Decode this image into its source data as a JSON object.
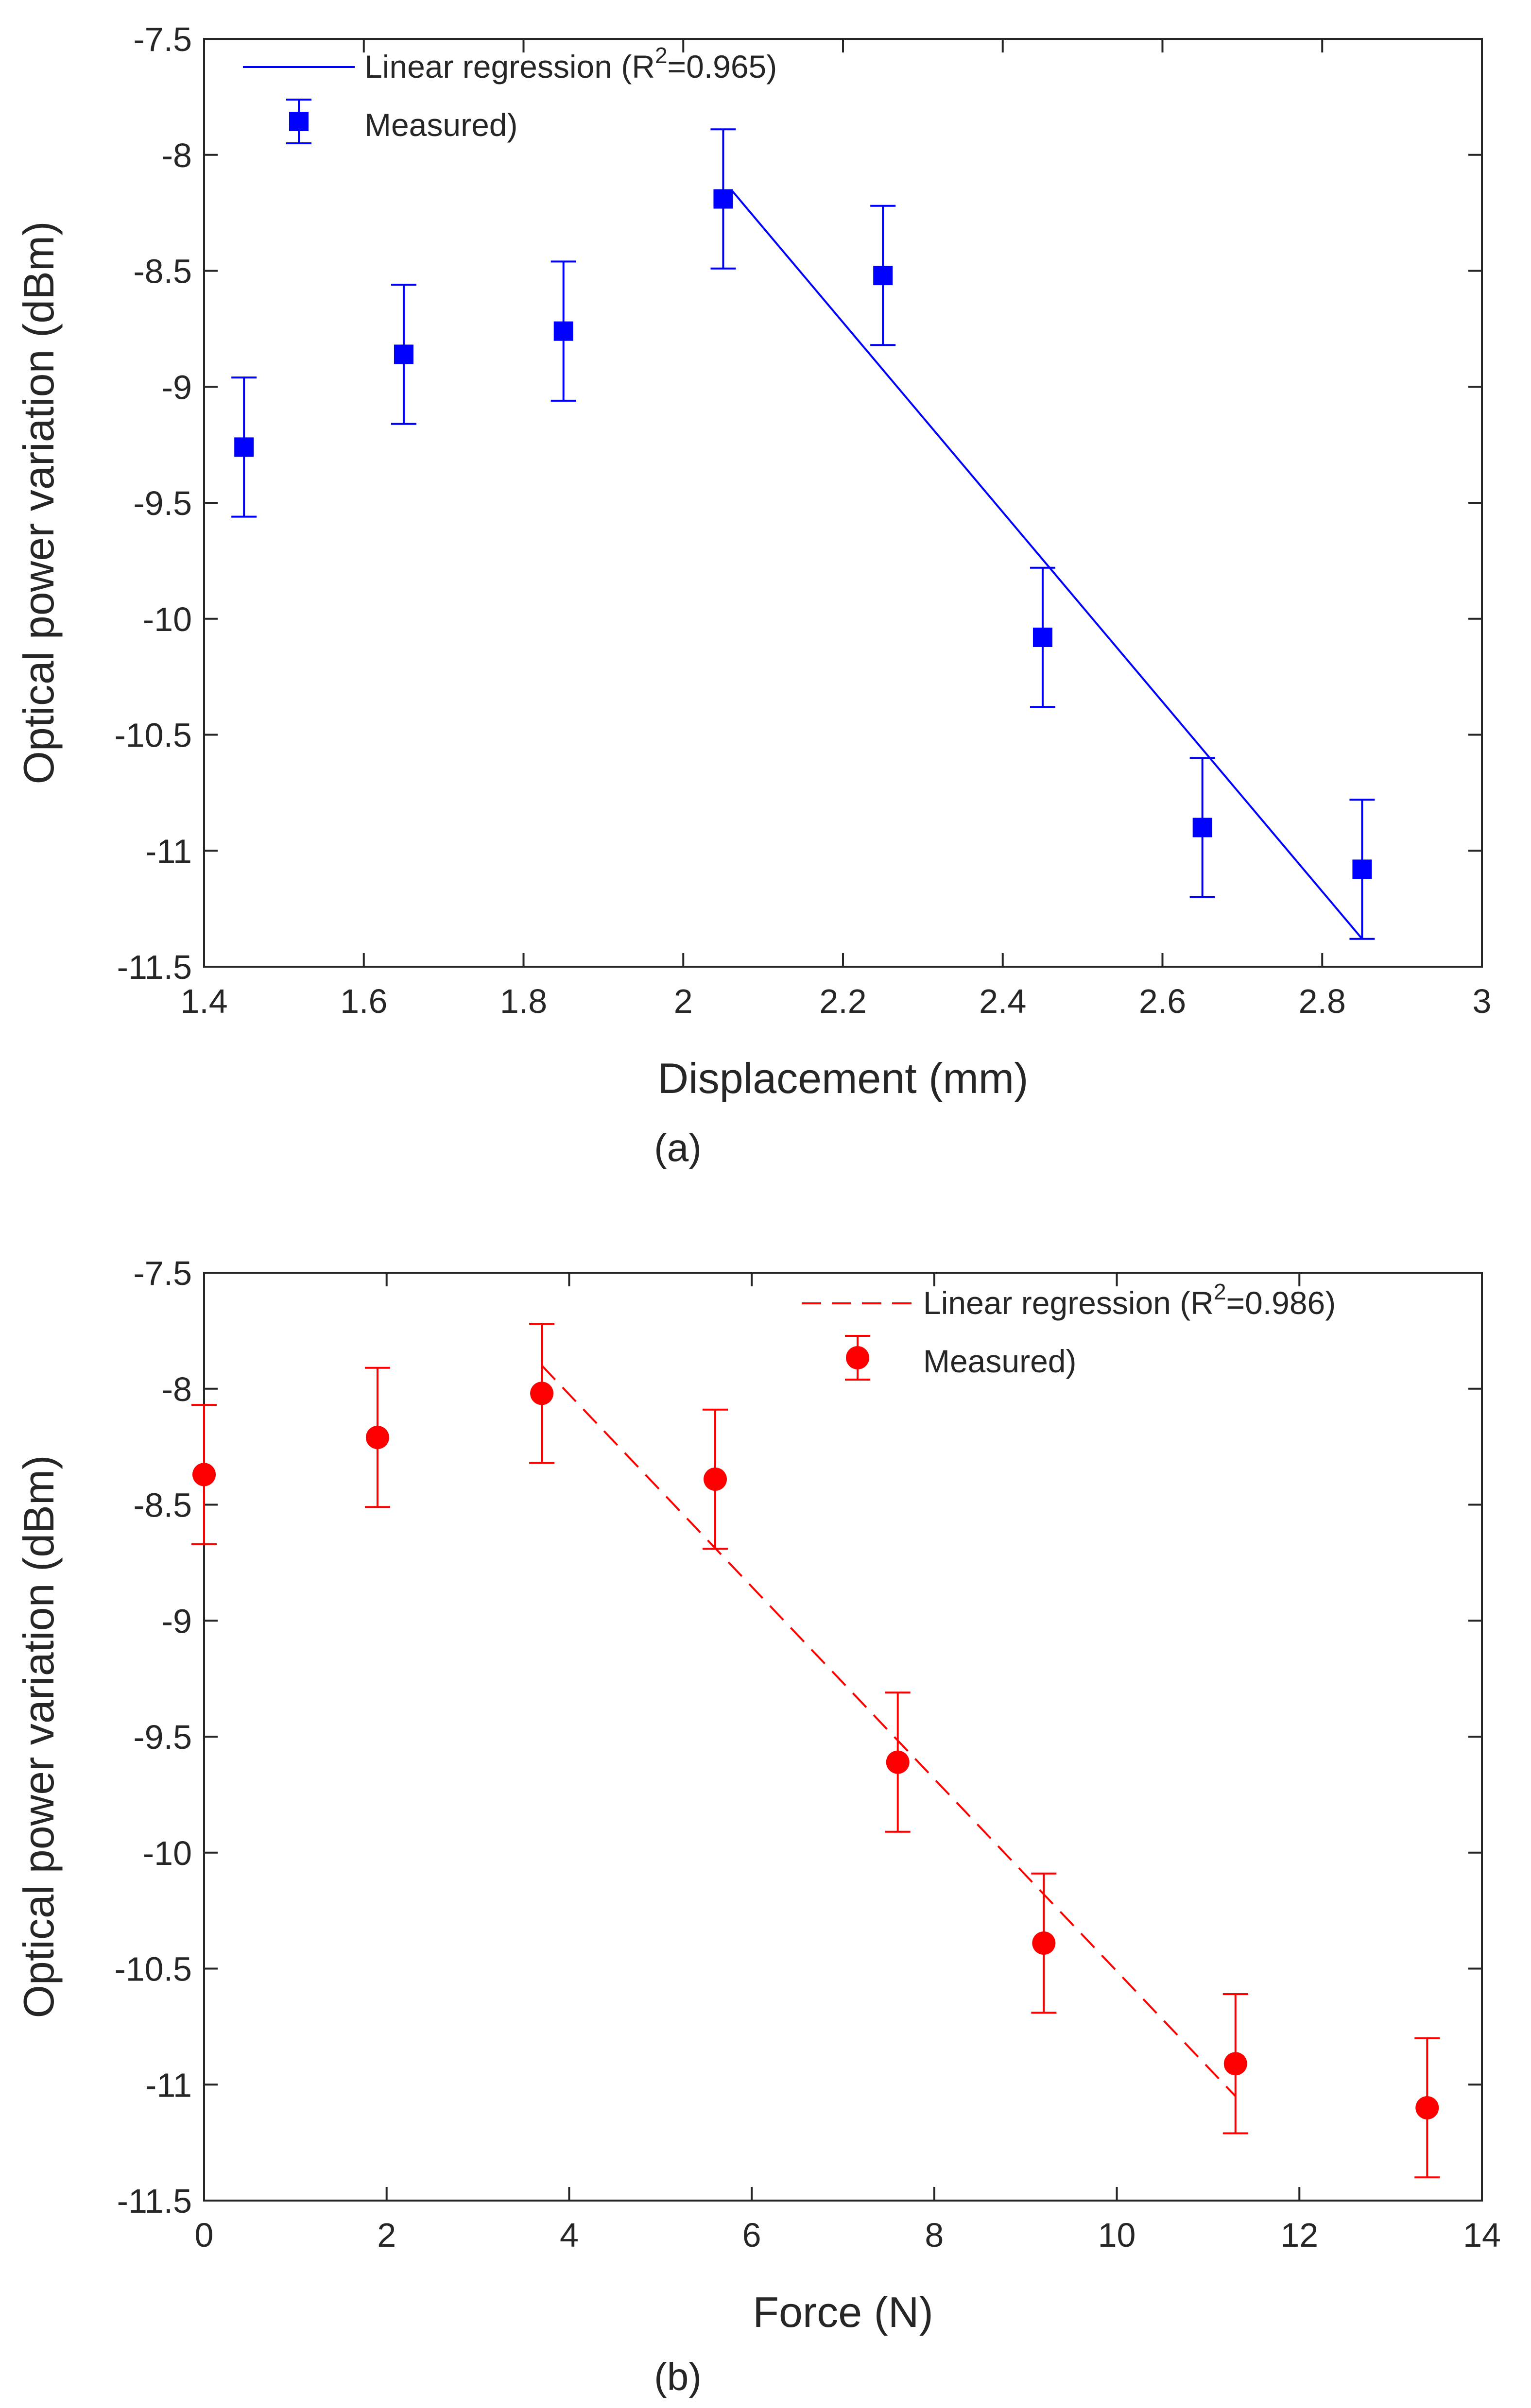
{
  "chart_data": [
    {
      "type": "scatter",
      "panel_label": "(a)",
      "xlabel": "Displacement (mm)",
      "ylabel": "Optical power variation (dBm)",
      "xlim": [
        1.4,
        3
      ],
      "ylim": [
        -11.5,
        -7.5
      ],
      "xticks": [
        "1.4",
        "1.6",
        "1.8",
        "2",
        "2.2",
        "2.4",
        "2.6",
        "2.8",
        "3"
      ],
      "yticks": [
        "-7.5",
        "-8",
        "-8.5",
        "-9",
        "-9.5",
        "-10",
        "-10.5",
        "-11",
        "-11.5"
      ],
      "grid": false,
      "legend_position": "top-left",
      "color": "#0000ff",
      "marker": "square",
      "series": [
        {
          "name": "Measured)",
          "x": [
            1.45,
            1.65,
            1.85,
            2.05,
            2.25,
            2.45,
            2.65,
            2.85
          ],
          "y": [
            -9.26,
            -8.86,
            -8.76,
            -8.19,
            -8.52,
            -10.08,
            -10.9,
            -11.08
          ],
          "error": [
            0.3,
            0.3,
            0.3,
            0.3,
            0.3,
            0.3,
            0.3,
            0.3
          ]
        }
      ],
      "regression": {
        "name_prefix": "Linear regression (R",
        "name_sup": "2",
        "name_suffix": "=0.965)",
        "x": [
          2.06,
          2.85
        ],
        "y": [
          -8.15,
          -11.38
        ],
        "style": "solid"
      }
    },
    {
      "type": "scatter",
      "panel_label": "(b)",
      "xlabel": "Force (N)",
      "ylabel": "Optical power variation (dBm)",
      "xlim": [
        0,
        14
      ],
      "ylim": [
        -11.5,
        -7.5
      ],
      "xticks": [
        "0",
        "2",
        "4",
        "6",
        "8",
        "10",
        "12",
        "14"
      ],
      "yticks": [
        "-7.5",
        "-8",
        "-8.5",
        "-9",
        "-9.5",
        "-10",
        "-10.5",
        "-11",
        "-11.5"
      ],
      "grid": false,
      "legend_position": "top-right",
      "color": "#ff0000",
      "marker": "circle",
      "series": [
        {
          "name": "Measured)",
          "x": [
            0.0,
            1.9,
            3.7,
            5.6,
            7.6,
            9.2,
            11.3,
            13.4
          ],
          "y": [
            -8.37,
            -8.21,
            -8.02,
            -8.39,
            -9.61,
            -10.39,
            -10.91,
            -11.1
          ],
          "error": [
            0.3,
            0.3,
            0.3,
            0.3,
            0.3,
            0.3,
            0.3,
            0.3
          ]
        }
      ],
      "regression": {
        "name_prefix": "Linear regression (R",
        "name_sup": "2",
        "name_suffix": "=0.986)",
        "x": [
          3.7,
          11.3
        ],
        "y": [
          -7.9,
          -11.05
        ],
        "style": "dashed"
      }
    }
  ]
}
